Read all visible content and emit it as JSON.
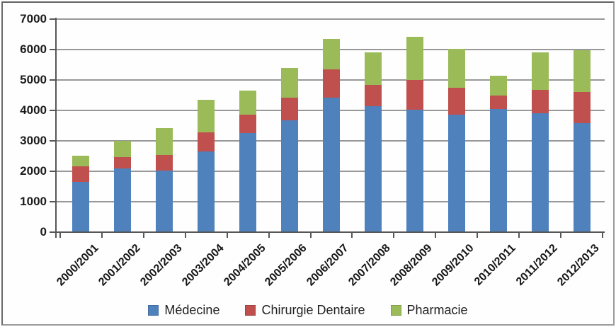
{
  "chart_data": {
    "type": "bar",
    "stacked": true,
    "title": "",
    "categories": [
      "2000/2001",
      "2001/2002",
      "2002/2003",
      "2003/2004",
      "2004/2005",
      "2005/2006",
      "2006/2007",
      "2007/2008",
      "2008/2009",
      "2009/2010",
      "2010/2011",
      "2011/2012",
      "2012/2013"
    ],
    "series": [
      {
        "name": "Médecine",
        "color": "#4f81bd",
        "values": [
          1650,
          2090,
          2030,
          2650,
          3250,
          3670,
          4420,
          4150,
          4030,
          3860,
          4050,
          3900,
          3580
        ]
      },
      {
        "name": "Chirurgie Dentaire",
        "color": "#c0504d",
        "values": [
          520,
          380,
          500,
          640,
          610,
          750,
          940,
          680,
          970,
          880,
          430,
          780,
          1020
        ]
      },
      {
        "name": "Pharmacie",
        "color": "#9bbb59",
        "values": [
          350,
          540,
          880,
          1050,
          790,
          970,
          1000,
          1070,
          1420,
          1290,
          670,
          1220,
          1380
        ]
      }
    ],
    "y_axis": {
      "min": 0,
      "max": 7000,
      "step": 1000,
      "tick_labels": [
        "0",
        "1000",
        "2000",
        "3000",
        "4000",
        "5000",
        "6000",
        "7000"
      ]
    },
    "x_axis": {
      "label_rotation_deg": -45
    },
    "grid": true,
    "legend": {
      "position": "bottom",
      "items": [
        "Médecine",
        "Chirurgie Dentaire",
        "Pharmacie"
      ]
    },
    "palette": {
      "medecine": "#4f81bd",
      "chirurgie_dentaire": "#c0504d",
      "pharmacie": "#9bbb59",
      "gridline": "#989898",
      "axis": "#575757",
      "text": "#1c1c1c",
      "frame_border": "#6a6a6a",
      "background": "#fefefe"
    }
  }
}
